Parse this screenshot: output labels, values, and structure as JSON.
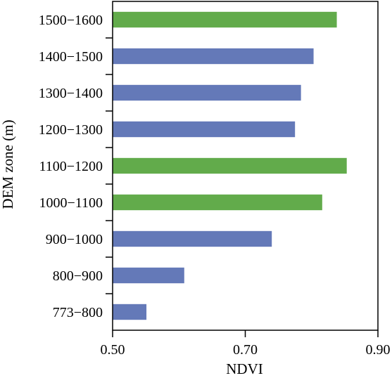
{
  "chart_data": {
    "type": "bar",
    "orientation": "horizontal",
    "categories": [
      "773−800",
      "800−900",
      "900−1000",
      "1000−1100",
      "1100−1200",
      "1200−1300",
      "1300−1400",
      "1400−1500",
      "1500−1600"
    ],
    "values": [
      0.551,
      0.608,
      0.74,
      0.816,
      0.853,
      0.775,
      0.784,
      0.803,
      0.838
    ],
    "bar_colors": [
      "#6479b8",
      "#6479b8",
      "#6479b8",
      "#62ab4b",
      "#62ab4b",
      "#6479b8",
      "#6479b8",
      "#6479b8",
      "#62ab4b"
    ],
    "xlabel": "NDVI",
    "ylabel": "DEM zone (m)",
    "xlim": [
      0.5,
      0.9
    ],
    "xticks": [
      0.5,
      0.7,
      0.9
    ],
    "xtick_labels": [
      "0.50",
      "0.70",
      "0.90"
    ],
    "grid": false,
    "legend": false
  }
}
